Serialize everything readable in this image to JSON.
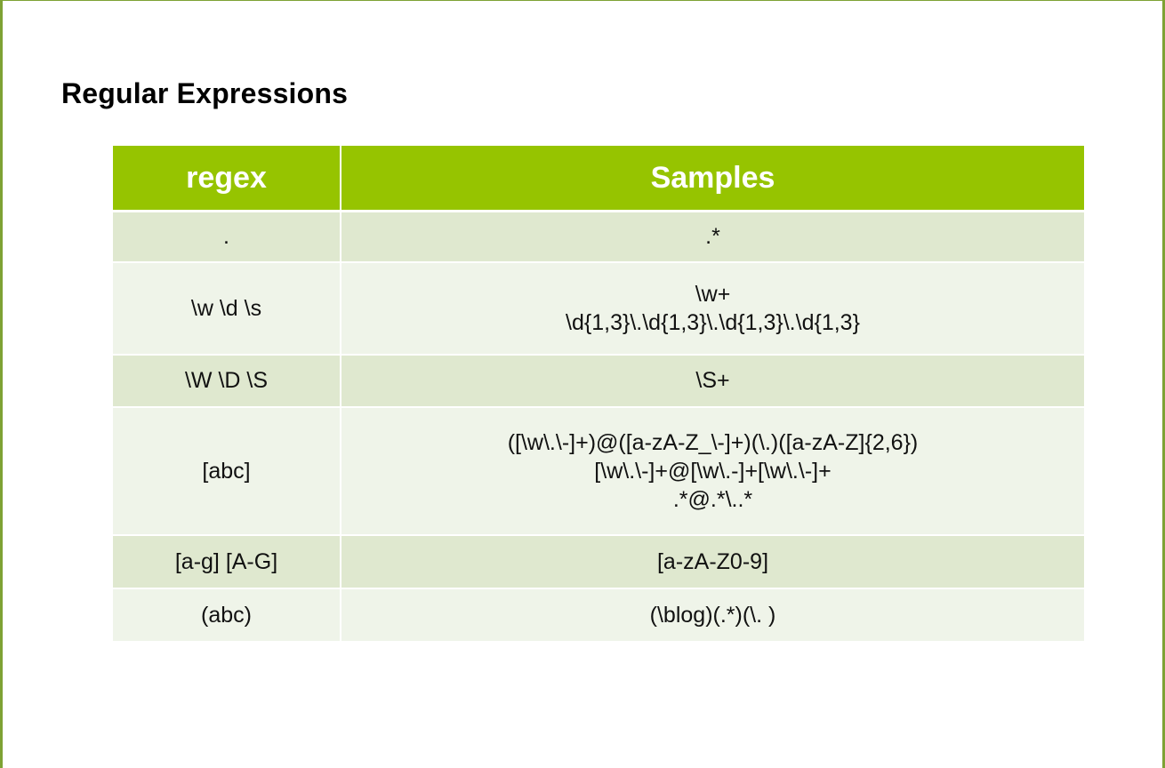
{
  "title": "Regular Expressions",
  "table": {
    "headers": [
      "regex",
      "Samples"
    ],
    "rows": [
      {
        "regex": ".",
        "samples": [
          ".*"
        ]
      },
      {
        "regex": "\\w \\d \\s",
        "samples": [
          "\\w+",
          "\\d{1,3}\\.\\d{1,3}\\.\\d{1,3}\\.\\d{1,3}"
        ]
      },
      {
        "regex": "\\W \\D \\S",
        "samples": [
          "\\S+"
        ]
      },
      {
        "regex": "[abc]",
        "samples": [
          "([\\w\\.\\-]+)@([a-zA-Z_\\-]+)(\\.)([a-zA-Z]{2,6})",
          "[\\w\\.\\-]+@[\\w\\.-]+[\\w\\.\\-]+",
          ".*@.*\\..*"
        ]
      },
      {
        "regex": "[a-g] [A-G]",
        "samples": [
          "[a-zA-Z0-9]"
        ]
      },
      {
        "regex": "(abc)",
        "samples": [
          "(\\blog)(.*)(\\. )"
        ]
      }
    ]
  },
  "colors": {
    "header_bg": "#96c400",
    "row_odd_bg": "#dfe8cf",
    "row_even_bg": "#eff4e9",
    "frame": "#7ea234"
  }
}
